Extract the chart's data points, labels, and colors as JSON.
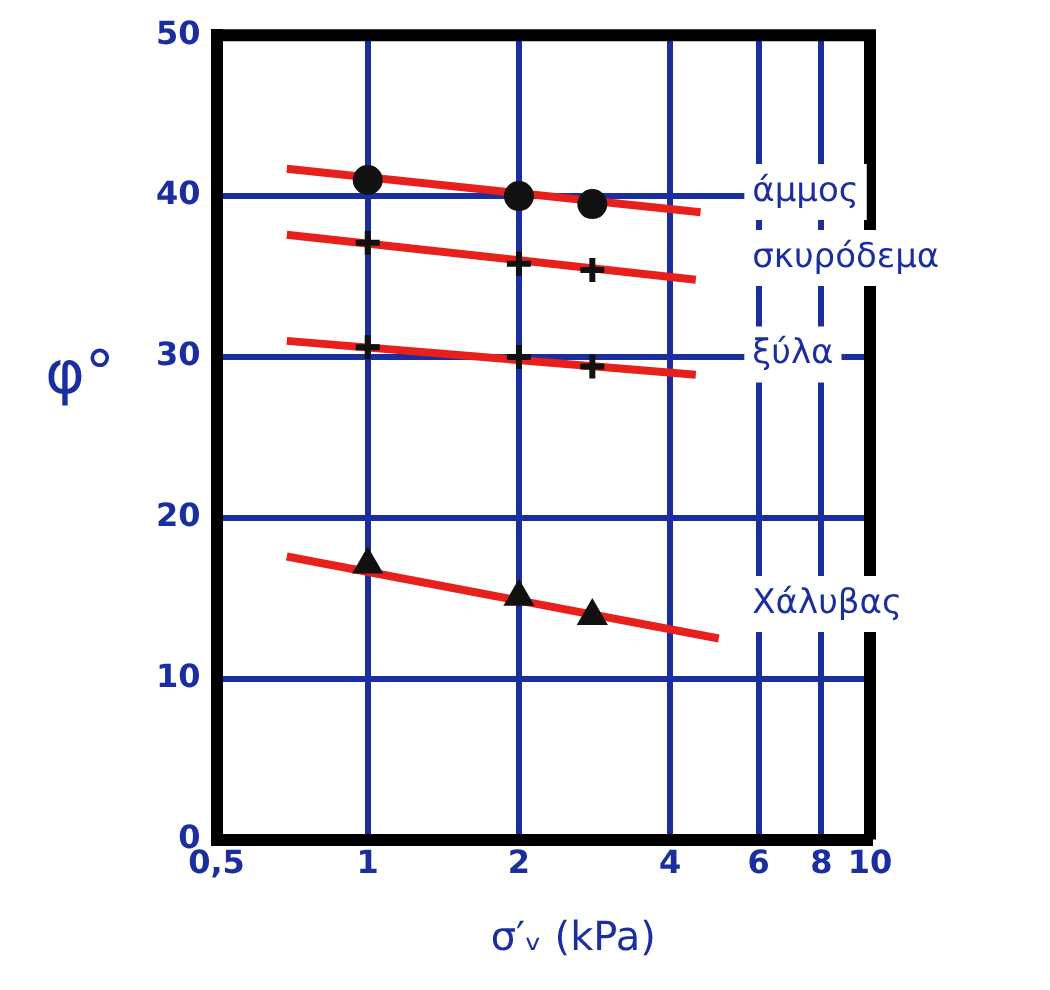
{
  "chart_data": {
    "type": "scatter",
    "xlabel": "σ′ᵥ (kPa)",
    "ylabel": "φ°",
    "log": "x",
    "xlim": [
      0.5,
      10
    ],
    "xticks": [
      {
        "value": 0.5,
        "label": "0,5"
      },
      1,
      2,
      4,
      6,
      8,
      10
    ],
    "ylim": [
      0,
      50
    ],
    "yticks": [
      0,
      10,
      20,
      30,
      40,
      50
    ],
    "grid": true,
    "legend": false,
    "series": [
      {
        "name": "άμμος",
        "type": "scatter",
        "marker": "circle",
        "color": "#111111",
        "x": [
          1,
          2,
          2.8
        ],
        "values": [
          41,
          40,
          39.5
        ]
      },
      {
        "type": "line",
        "color": "#e8201c",
        "marker": "none",
        "x": [
          0.69,
          4.6
        ],
        "values": [
          41.7,
          39
        ]
      },
      {
        "name": "σκυρόδεμα",
        "type": "scatter",
        "marker": "cross",
        "color": "#111111",
        "x": [
          1,
          2,
          2.8
        ],
        "values": [
          37.1,
          35.8,
          35.4
        ]
      },
      {
        "type": "line",
        "color": "#e8201c",
        "marker": "none",
        "x": [
          0.69,
          4.5
        ],
        "values": [
          37.6,
          34.8
        ]
      },
      {
        "name": "ξύλα",
        "type": "scatter",
        "marker": "cross",
        "color": "#111111",
        "x": [
          1,
          2,
          2.8
        ],
        "values": [
          30.6,
          30,
          29.4
        ]
      },
      {
        "type": "line",
        "color": "#e8201c",
        "marker": "none",
        "x": [
          0.69,
          4.5
        ],
        "values": [
          31,
          28.9
        ]
      },
      {
        "name": "Χάλυβας",
        "type": "scatter",
        "marker": "triangle",
        "color": "#111111",
        "x": [
          1,
          2,
          2.8
        ],
        "values": [
          17.1,
          15.1,
          13.9
        ]
      },
      {
        "type": "line",
        "color": "#e8201c",
        "marker": "none",
        "x": [
          0.69,
          5
        ],
        "values": [
          17.6,
          12.5
        ]
      }
    ]
  }
}
